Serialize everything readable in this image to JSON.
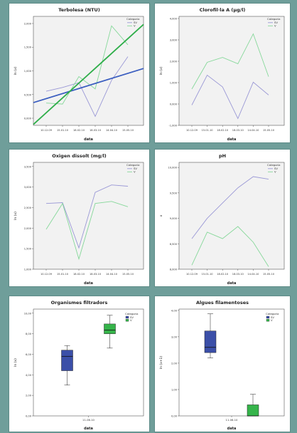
{
  "chart_data": [
    {
      "type": "line",
      "title": "Terbolesa (NTU)",
      "xlabel": "data",
      "ylabel": "ln (x)",
      "legend_title": "Categoria",
      "legend_position": "top-right",
      "categories": [
        "10.12.09",
        "15.01.10",
        "18.02.10",
        "18.03.10",
        "14.04.10",
        "15.05.10"
      ],
      "yticks": [
        "0,000",
        "0,500",
        "1,000",
        "1,500",
        "2,000"
      ],
      "ylim": [
        -0.15,
        2.15
      ],
      "series": [
        {
          "name": "SV",
          "values": [
            0.57,
            0.65,
            0.75,
            0.04,
            0.8,
            1.3
          ],
          "color": "#9a98d6"
        },
        {
          "name": "V",
          "values": [
            0.32,
            0.3,
            0.88,
            0.62,
            1.95,
            1.55
          ],
          "color": "#86d89a"
        }
      ],
      "fit_lines": [
        {
          "series": "SV",
          "start": 0.33,
          "end": 1.05,
          "color": "#3b5ec0"
        },
        {
          "series": "V",
          "start": -0.13,
          "end": 1.98,
          "color": "#2fae4a"
        }
      ],
      "grid": false
    },
    {
      "type": "line",
      "title": "Clorofil·la A (µg/l)",
      "xlabel": "data",
      "ylabel": "ln (x)",
      "legend_title": "Categoria",
      "legend_position": "top-right",
      "categories": [
        "10.12.09",
        "15.01.10",
        "18.02.10",
        "18.03.10",
        "14.04.10",
        "15.05.10"
      ],
      "yticks": [
        "-1,000",
        "0,000",
        "1,000",
        "2,000",
        "3,000",
        "4,000"
      ],
      "ylim": [
        -1,
        4.1
      ],
      "series": [
        {
          "name": "SV",
          "values": [
            -0.05,
            1.35,
            0.8,
            -0.68,
            1.02,
            0.42
          ],
          "color": "#9a98d6"
        },
        {
          "name": "V",
          "values": [
            0.7,
            1.95,
            2.18,
            1.88,
            3.28,
            1.28
          ],
          "color": "#86d89a"
        }
      ],
      "grid": false
    },
    {
      "type": "line",
      "title": "Oxigen dissolt (mg/l)",
      "xlabel": "data",
      "ylabel": "ln (x)",
      "legend_title": "Categoria",
      "legend_position": "top-right",
      "categories": [
        "10.12.09",
        "15.01.10",
        "18.02.10",
        "18.03.10",
        "14.04.10",
        "15.05.10"
      ],
      "yticks": [
        "1,000",
        "1,500",
        "2,000",
        "2,500",
        "3,000",
        "3,500"
      ],
      "ylim": [
        1,
        3.6
      ],
      "series": [
        {
          "name": "SV",
          "values": [
            2.6,
            2.62,
            1.52,
            2.87,
            3.05,
            3.02
          ],
          "color": "#9a98d6"
        },
        {
          "name": "V",
          "values": [
            1.97,
            2.6,
            1.25,
            2.6,
            2.65,
            2.52
          ],
          "color": "#86d89a"
        }
      ],
      "grid": false
    },
    {
      "type": "line",
      "title": "pH",
      "xlabel": "data",
      "ylabel": "x",
      "legend_title": "Categoria",
      "legend_position": "top-right",
      "categories": [
        "10.12.09",
        "15.01.10",
        "18.02.10",
        "18.03.10",
        "14.04.10",
        "15.05.10"
      ],
      "yticks": [
        "8,000",
        "8,500",
        "9,000",
        "9,500",
        "10,000"
      ],
      "ylim": [
        8,
        10.1
      ],
      "series": [
        {
          "name": "SV",
          "values": [
            8.6,
            9.0,
            9.3,
            9.6,
            9.82,
            9.77
          ],
          "color": "#9a98d6"
        },
        {
          "name": "V",
          "values": [
            8.08,
            8.73,
            8.6,
            8.84,
            8.53,
            8.05
          ],
          "color": "#86d89a"
        }
      ],
      "grid": false
    },
    {
      "type": "box",
      "title": "Organismes filtradors",
      "xlabel": "data",
      "ylabel": "ln (x)",
      "category": "11.06.10",
      "legend_title": "Categoria",
      "legend_position": "top-right",
      "yticks": [
        "0,00",
        "2,00",
        "4,00",
        "6,00",
        "8,00",
        "10,00"
      ],
      "ylim": [
        0,
        10.4
      ],
      "series": [
        {
          "name": "SV",
          "color": "#3b4fa8",
          "min": 3.0,
          "q1": 4.4,
          "median": 5.8,
          "q3": 6.4,
          "max": 6.85
        },
        {
          "name": "V",
          "color": "#35b44a",
          "min": 6.6,
          "q1": 8.0,
          "median": 8.35,
          "q3": 8.95,
          "max": 9.8
        }
      ],
      "grid": false
    },
    {
      "type": "box",
      "title": "Algues filamentoses",
      "xlabel": "data",
      "ylabel": "ln (x+1)",
      "category": "11.06.10",
      "legend_title": "Categoria",
      "legend_position": "top-right",
      "yticks": [
        "0,00",
        "1,00",
        "2,00",
        "3,00",
        "4,00"
      ],
      "ylim": [
        0,
        4.05
      ],
      "series": [
        {
          "name": "SV",
          "color": "#3b4fa8",
          "min": 2.2,
          "q1": 2.4,
          "median": 2.6,
          "q3": 3.22,
          "max": 3.87
        },
        {
          "name": "V",
          "color": "#35b44a",
          "min": 0.0,
          "q1": 0.0,
          "median": 0.0,
          "q3": 0.42,
          "max": 0.82
        }
      ],
      "grid": false
    }
  ]
}
